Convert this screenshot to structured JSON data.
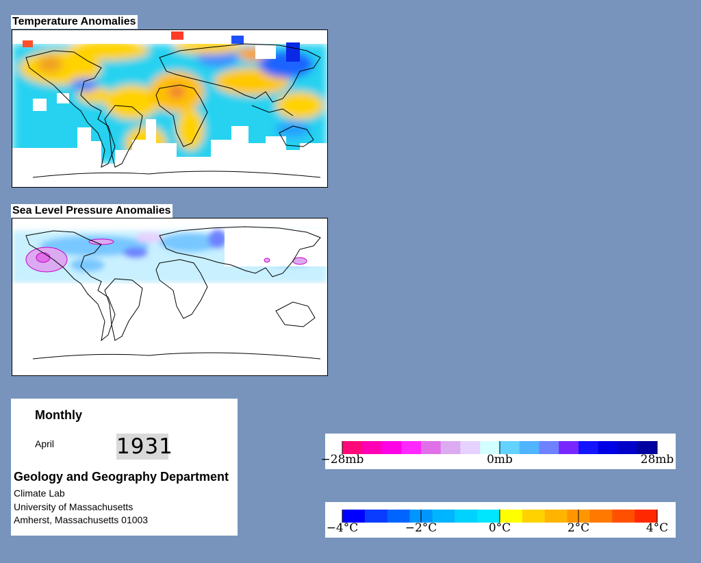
{
  "temperature_map": {
    "title": "Temperature Anomalies"
  },
  "pressure_map": {
    "title": "Sea Level Pressure Anomalies"
  },
  "info": {
    "period": "Monthly",
    "month": "April",
    "year": "1931",
    "department": "Geology and Geography Department",
    "lab": "Climate Lab",
    "university": "University of Massachusetts",
    "address": "Amherst, Massachusetts 01003"
  },
  "pressure_legend": {
    "colors": [
      "#ff0a78",
      "#ff00b4",
      "#ff00e6",
      "#ff28ff",
      "#e070e8",
      "#dcaaf0",
      "#e6d2ff",
      "#d2ffff",
      "#64d2ff",
      "#50b4ff",
      "#6e82ff",
      "#7828ff",
      "#1414ff",
      "#0000e6",
      "#0000c8",
      "#0000a0"
    ],
    "labels": [
      {
        "text": "−28mb",
        "value": -28
      },
      {
        "text": "0mb",
        "value": 0
      },
      {
        "text": "28mb",
        "value": 28
      }
    ],
    "range": [
      -28,
      28
    ]
  },
  "temperature_legend": {
    "colors": [
      "#0000ff",
      "#0a3cff",
      "#0064ff",
      "#0096ff",
      "#00b4ff",
      "#00d2ff",
      "#00e6ff",
      "#ffff00",
      "#ffd200",
      "#ffb400",
      "#ff9600",
      "#ff7800",
      "#ff5000",
      "#ff2800"
    ],
    "labels": [
      {
        "text": "−4°C",
        "value": -4
      },
      {
        "text": "−2°C",
        "value": -2
      },
      {
        "text": "0°C",
        "value": 0
      },
      {
        "text": "2°C",
        "value": 2
      },
      {
        "text": "4°C",
        "value": 4
      }
    ],
    "range": [
      -4,
      4
    ]
  }
}
